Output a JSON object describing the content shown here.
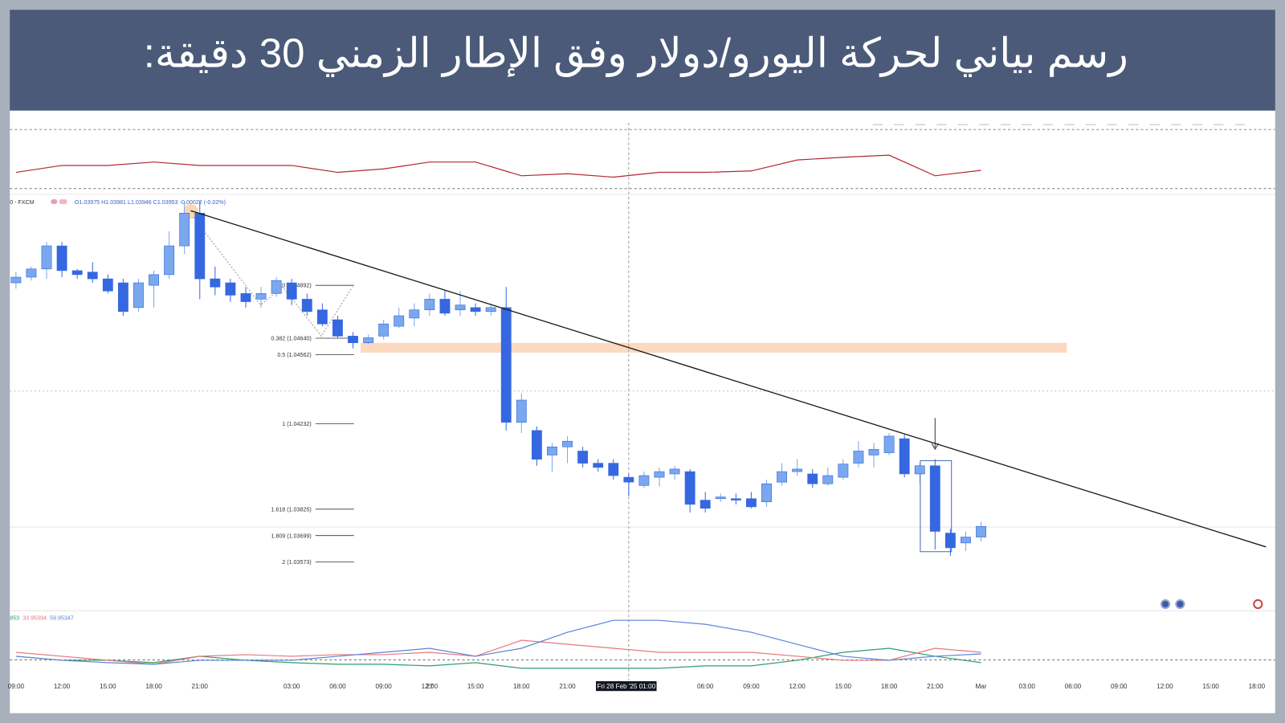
{
  "title": "رسم بياني لحركة اليورو/دولار وفق الإطار الزمني 30 دقيقة:",
  "chart_data": {
    "type": "candlestick",
    "symbol_label": "0 - FXCM",
    "ohlc_legend": "O1.03975 H1.03981 L1.03946 C1.03953 -0.00022 (-0.02%)",
    "up_color": "#7aa7ee",
    "down_color": "#3568e0",
    "ylim": [
      1.03341,
      1.05326
    ],
    "xlim": [
      -0.4,
      82.2
    ],
    "open": [
      1.04904,
      1.04931,
      1.0497,
      1.0508,
      1.04962,
      1.04955,
      1.04923,
      1.04904,
      1.04786,
      1.04892,
      1.04943,
      1.0508,
      1.05236,
      1.04923,
      1.04904,
      1.04853,
      1.04826,
      1.04853,
      1.04904,
      1.04826,
      1.04775,
      1.04728,
      1.0465,
      1.04618,
      1.0465,
      1.04697,
      1.04736,
      1.04775,
      1.04826,
      1.04775,
      1.04786,
      1.04767,
      1.04786,
      1.04239,
      1.042,
      1.04083,
      1.04122,
      1.04102,
      1.04044,
      1.04044,
      1.03977,
      1.03938,
      1.03977,
      1.03993,
      1.04004,
      1.03868,
      1.03875,
      1.03875,
      1.03875,
      1.0386,
      1.03954,
      1.04004,
      1.03993,
      1.03946,
      1.03977,
      1.04044,
      1.04083,
      1.04094,
      1.04161,
      1.03993,
      1.04032,
      1.03711,
      1.03664,
      1.03692
    ],
    "high": [
      1.04955,
      1.04982,
      1.05099,
      1.05099,
      1.0497,
      1.05002,
      1.04943,
      1.04923,
      1.04923,
      1.04962,
      1.0515,
      1.05295,
      1.05295,
      1.04982,
      1.04923,
      1.04884,
      1.04884,
      1.04931,
      1.04923,
      1.04853,
      1.04806,
      1.04747,
      1.04669,
      1.04657,
      1.04728,
      1.04786,
      1.04806,
      1.04853,
      1.04865,
      1.04865,
      1.04806,
      1.04806,
      1.04884,
      1.04376,
      1.0422,
      1.04141,
      1.04173,
      1.04122,
      1.04063,
      1.04063,
      1.03993,
      1.04004,
      1.04024,
      1.04032,
      1.04016,
      1.03907,
      1.03899,
      1.03899,
      1.03907,
      1.03965,
      1.04044,
      1.04063,
      1.04016,
      1.04024,
      1.04063,
      1.04149,
      1.04141,
      1.04188,
      1.0418,
      1.04044,
      1.04063,
      1.03731,
      1.03719,
      1.03766
    ],
    "low": [
      1.04876,
      1.04915,
      1.04923,
      1.04931,
      1.04923,
      1.04904,
      1.04853,
      1.04747,
      1.04767,
      1.04786,
      1.04923,
      1.05041,
      1.04826,
      1.04845,
      1.04814,
      1.04786,
      1.04786,
      1.04837,
      1.04798,
      1.04747,
      1.04697,
      1.04642,
      1.04591,
      1.04611,
      1.04634,
      1.04689,
      1.04697,
      1.04747,
      1.04747,
      1.04747,
      1.04747,
      1.04747,
      1.042,
      1.04188,
      1.04032,
      1.04004,
      1.04044,
      1.04024,
      1.04004,
      1.03965,
      1.03887,
      1.03926,
      1.03934,
      1.03965,
      1.03809,
      1.03809,
      1.0386,
      1.03848,
      1.03829,
      1.03836,
      1.03938,
      1.03985,
      1.03926,
      1.03938,
      1.03965,
      1.04024,
      1.04024,
      1.04083,
      1.03977,
      1.03946,
      1.03633,
      1.03602,
      1.03625,
      1.03672
    ],
    "close": [
      1.04931,
      1.0497,
      1.0508,
      1.04962,
      1.04943,
      1.04923,
      1.04865,
      1.04767,
      1.04904,
      1.04943,
      1.0508,
      1.05236,
      1.04923,
      1.04884,
      1.04845,
      1.04814,
      1.04853,
      1.04915,
      1.04826,
      1.04767,
      1.04708,
      1.0465,
      1.04618,
      1.04642,
      1.04708,
      1.04747,
      1.04775,
      1.04826,
      1.04759,
      1.04798,
      1.04767,
      1.04786,
      1.04239,
      1.04345,
      1.04063,
      1.04122,
      1.04149,
      1.04044,
      1.04024,
      1.03985,
      1.03954,
      1.03985,
      1.04004,
      1.04016,
      1.03848,
      1.03829,
      1.03883,
      1.03868,
      1.03836,
      1.03946,
      1.04004,
      1.04016,
      1.03946,
      1.03985,
      1.0404,
      1.04102,
      1.0411,
      1.04173,
      1.03993,
      1.04032,
      1.03719,
      1.03641,
      1.03692,
      1.03743
    ],
    "xticks": [
      {
        "value": 0,
        "label": "09:00"
      },
      {
        "value": 3,
        "label": "12:00"
      },
      {
        "value": 6,
        "label": "15:00"
      },
      {
        "value": 9,
        "label": "18:00"
      },
      {
        "value": 12,
        "label": "21:00"
      },
      27,
      {
        "value": 18,
        "label": "03:00"
      },
      {
        "value": 21,
        "label": "06:00"
      },
      {
        "value": 24,
        "label": "09:00"
      },
      {
        "value": 27,
        "label": "12:00"
      },
      {
        "value": 30,
        "label": "15:00"
      },
      {
        "value": 33,
        "label": "18:00"
      },
      {
        "value": 36,
        "label": "21:00"
      },
      {
        "value": 45,
        "label": "06:00"
      },
      {
        "value": 48,
        "label": "09:00"
      },
      {
        "value": 51,
        "label": "12:00"
      },
      {
        "value": 54,
        "label": "15:00"
      },
      {
        "value": 57,
        "label": "18:00"
      },
      {
        "value": 60,
        "label": "21:00"
      },
      {
        "value": 63,
        "label": "Mar"
      },
      {
        "value": 66,
        "label": "03:00"
      },
      {
        "value": 69,
        "label": "06:00"
      },
      {
        "value": 72,
        "label": "09:00"
      },
      {
        "value": 75,
        "label": "12:00"
      },
      {
        "value": 78,
        "label": "15:00"
      },
      {
        "value": 81,
        "label": "18:00"
      }
    ],
    "crosshair": {
      "x": 40,
      "label": "Fri 28 Feb '25  01:00"
    },
    "trendline": {
      "x": [
        11.4,
        81.6
      ],
      "y": [
        1.05248,
        1.03645
      ],
      "color": "#1a1a1a"
    },
    "zone": {
      "x": [
        22.5,
        68.6
      ],
      "y": [
        1.04618,
        1.04571
      ],
      "color": "#fcd9bf"
    },
    "fib_levels": [
      {
        "label": "0 (1.04892)",
        "value": 1.04892
      },
      {
        "label": "0.382 (1.04640)",
        "value": 1.0464
      },
      {
        "label": "0.5 (1.04562)",
        "value": 1.04562
      },
      {
        "label": "1 (1.04232)",
        "value": 1.04232
      },
      {
        "label": "1.618 (1.03825)",
        "value": 1.03825
      },
      {
        "label": "1.809 (1.03699)",
        "value": 1.03699
      },
      {
        "label": "2 (1.03573)",
        "value": 1.03573
      }
    ],
    "indicators": [
      {
        "ylim": [
          0,
          100
        ],
        "x": [
          0,
          3,
          6,
          9,
          12,
          15,
          18,
          21,
          24,
          27,
          30,
          33,
          36,
          39,
          42,
          45,
          48,
          51,
          54,
          57,
          60,
          63
        ],
        "series": [
          {
            "color": "#b22833",
            "values": [
              30.2,
              41.9,
              41.9,
              47.7,
              41.9,
              41.9,
              41.9,
              30.2,
              36.0,
              47.7,
              47.7,
              24.4,
              27.9,
              22.1,
              30.2,
              30.2,
              32.6,
              51.2,
              55.8,
              59.3,
              24.4,
              33.7
            ]
          }
        ]
      },
      {
        "ylim": [
          0,
          100
        ],
        "x": [
          0,
          3,
          6,
          9,
          12,
          15,
          18,
          21,
          24,
          27,
          30,
          33,
          36,
          39,
          42,
          45,
          48,
          51,
          54,
          57,
          60,
          63
        ],
        "legend_values": [
          "853",
          "33.95394",
          "59.95347"
        ],
        "series": [
          {
            "color": "#2e9e6b",
            "values": [
              31.3,
              25,
              25,
              21.3,
              31.3,
              25,
              21.3,
              18.8,
              18.8,
              16.3,
              21.3,
              12.5,
              12.5,
              12.5,
              12.5,
              16.3,
              16.3,
              25,
              37.5,
              43.8,
              31.3,
              21.3
            ]
          },
          {
            "color": "#e8777b",
            "values": [
              37.5,
              31.3,
              25,
              18.8,
              31.3,
              33.8,
              31.3,
              33.8,
              33.8,
              37.5,
              31.3,
              56.3,
              50,
              43.8,
              37.5,
              37.5,
              37.5,
              31.3,
              25,
              25,
              43.8,
              37.5
            ]
          },
          {
            "color": "#5b84d8",
            "values": [
              31.3,
              25,
              21.3,
              18.8,
              25,
              25,
              25,
              31.3,
              37.5,
              43.8,
              31.3,
              43.8,
              68.8,
              87.5,
              87.5,
              81.3,
              68.8,
              50,
              31.3,
              25,
              31.3,
              35
            ]
          }
        ]
      }
    ]
  }
}
